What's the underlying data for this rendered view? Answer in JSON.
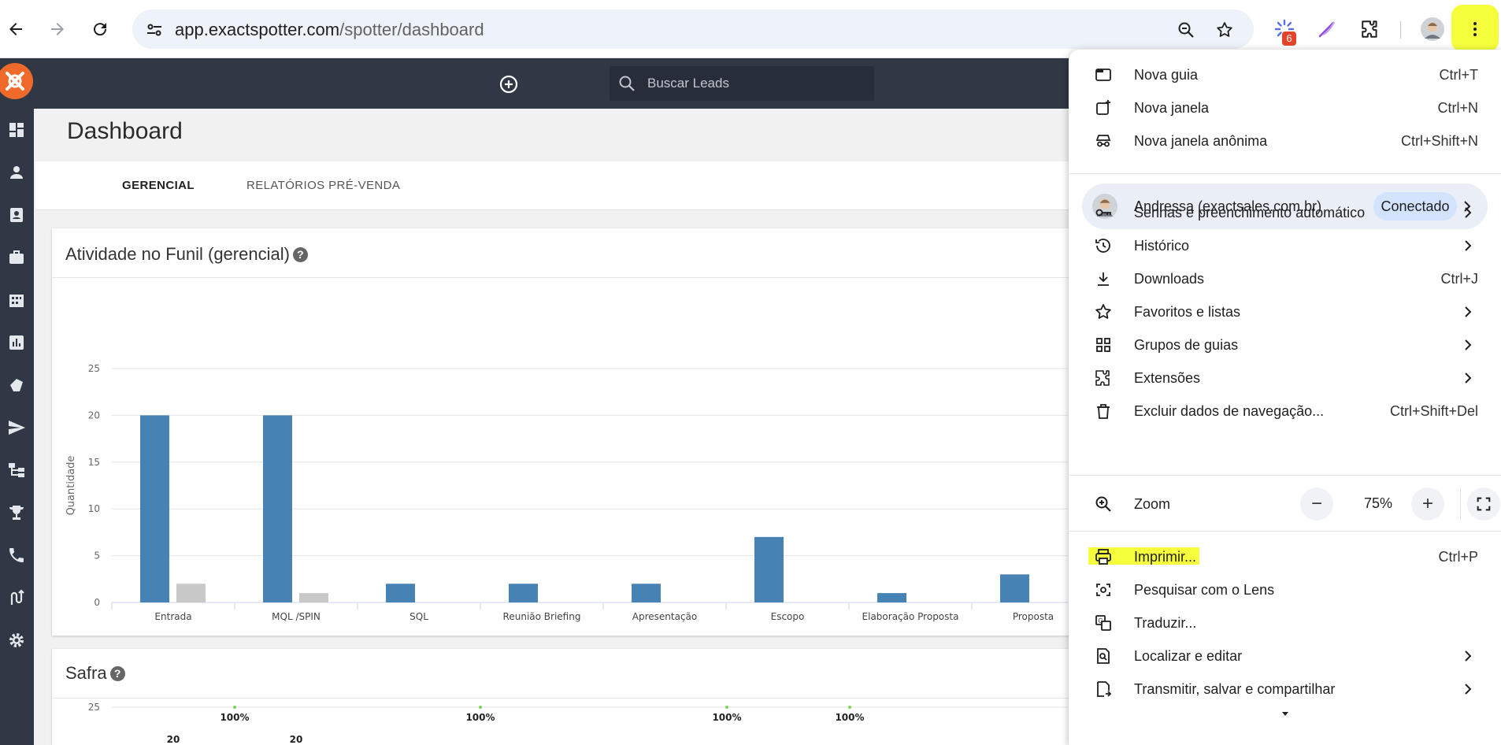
{
  "browser": {
    "url_host": "app.exactspotter.com",
    "url_path": "/spotter/dashboard",
    "extension_badge": "6"
  },
  "app": {
    "search_placeholder": "Buscar Leads",
    "page_title": "Dashboard",
    "tabs": [
      {
        "label": "GERENCIAL",
        "active": true
      },
      {
        "label": "RELATÓRIOS PRÉ-VENDA",
        "active": false
      }
    ],
    "funnel_card_title": "Atividade no Funil (gerencial)",
    "safra_card_title": "Safra",
    "help_glyph": "?"
  },
  "chart_data": [
    {
      "type": "bar",
      "title": "Atividade no Funil (gerencial)",
      "ylabel": "Quantidade",
      "ylim": [
        0,
        25
      ],
      "yticks": [
        0,
        5,
        10,
        15,
        20,
        25
      ],
      "categories": [
        "Entrada",
        "MQL /SPIN",
        "SQL",
        "Reunião Briefing",
        "Apresentação",
        "Escopo",
        "Elaboração Proposta",
        "Proposta"
      ],
      "series": [
        {
          "values": [
            20,
            20,
            2,
            2,
            2,
            7,
            1,
            3
          ],
          "color": "#4682b4"
        },
        {
          "values": [
            2,
            1,
            0,
            0,
            0,
            0,
            0,
            0
          ],
          "color": "#c8c8c8"
        }
      ]
    },
    {
      "type": "line",
      "title": "Safra",
      "yticks_visible": [
        25
      ],
      "annotations": [
        "100%",
        "100%",
        "100%",
        "100%"
      ],
      "data_labels_visible": [
        "20",
        "20"
      ]
    }
  ],
  "chrome_menu": {
    "items_top": [
      {
        "icon": "new-tab-icon",
        "label": "Nova guia",
        "shortcut": "Ctrl+T"
      },
      {
        "icon": "new-window-icon",
        "label": "Nova janela",
        "shortcut": "Ctrl+N"
      },
      {
        "icon": "incognito-icon",
        "label": "Nova janela anônima",
        "shortcut": "Ctrl+Shift+N"
      }
    ],
    "profile": {
      "name": "Andressa (exactsales.com.br)",
      "status": "Conectado"
    },
    "items_mid": [
      {
        "icon": "key-icon",
        "label": "Senhas e preenchimento automático",
        "shortcut": "",
        "submenu": true
      },
      {
        "icon": "history-icon",
        "label": "Histórico",
        "shortcut": "",
        "submenu": true
      },
      {
        "icon": "download-icon",
        "label": "Downloads",
        "shortcut": "Ctrl+J",
        "submenu": false
      },
      {
        "icon": "star-icon",
        "label": "Favoritos e listas",
        "shortcut": "",
        "submenu": true
      },
      {
        "icon": "tab-groups-icon",
        "label": "Grupos de guias",
        "shortcut": "",
        "submenu": true
      },
      {
        "icon": "extensions-icon",
        "label": "Extensões",
        "shortcut": "",
        "submenu": true
      },
      {
        "icon": "trash-icon",
        "label": "Excluir dados de navegação...",
        "shortcut": "Ctrl+Shift+Del",
        "submenu": false
      }
    ],
    "zoom": {
      "label": "Zoom",
      "value": "75%",
      "minus": "−",
      "plus": "+"
    },
    "items_bottom": [
      {
        "icon": "print-icon",
        "label": "Imprimir...",
        "shortcut": "Ctrl+P",
        "submenu": false
      },
      {
        "icon": "lens-icon",
        "label": "Pesquisar com o Lens",
        "shortcut": "",
        "submenu": false
      },
      {
        "icon": "translate-icon",
        "label": "Traduzir...",
        "shortcut": "",
        "submenu": false
      },
      {
        "icon": "find-edit-icon",
        "label": "Localizar e editar",
        "shortcut": "",
        "submenu": true
      },
      {
        "icon": "cast-save-share-icon",
        "label": "Transmitir, salvar e compartilhar",
        "shortcut": "",
        "submenu": true
      }
    ],
    "highlight_color": "#f6ff3c"
  }
}
